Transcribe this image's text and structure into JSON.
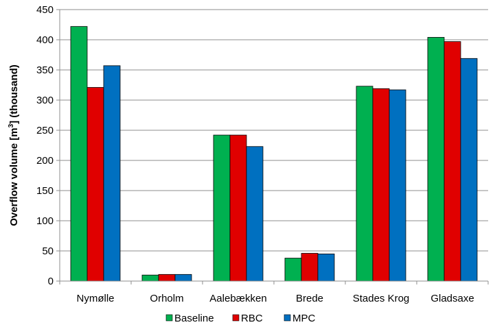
{
  "chart_data": {
    "type": "bar",
    "categories": [
      "Nymølle",
      "Orholm",
      "Aalebækken",
      "Brede",
      "Stades Krog",
      "Gladsaxe"
    ],
    "series": [
      {
        "name": "Baseline",
        "color": "#00b050",
        "values": [
          422,
          10,
          242,
          38,
          323,
          404
        ]
      },
      {
        "name": "RBC",
        "color": "#e00000",
        "values": [
          321,
          11,
          242,
          46,
          319,
          397
        ]
      },
      {
        "name": "MPC",
        "color": "#0070c0",
        "values": [
          357,
          11,
          223,
          45,
          317,
          369
        ]
      }
    ],
    "title": "",
    "xlabel": "",
    "ylabel_main": "Overflow volume [m",
    "ylabel_sup": "3",
    "ylabel_tail": "] (thousand)",
    "ylim": [
      0,
      450
    ],
    "yticks": [
      0,
      50,
      100,
      150,
      200,
      250,
      300,
      350,
      400,
      450
    ],
    "grid": true,
    "legend_position": "bottom"
  }
}
